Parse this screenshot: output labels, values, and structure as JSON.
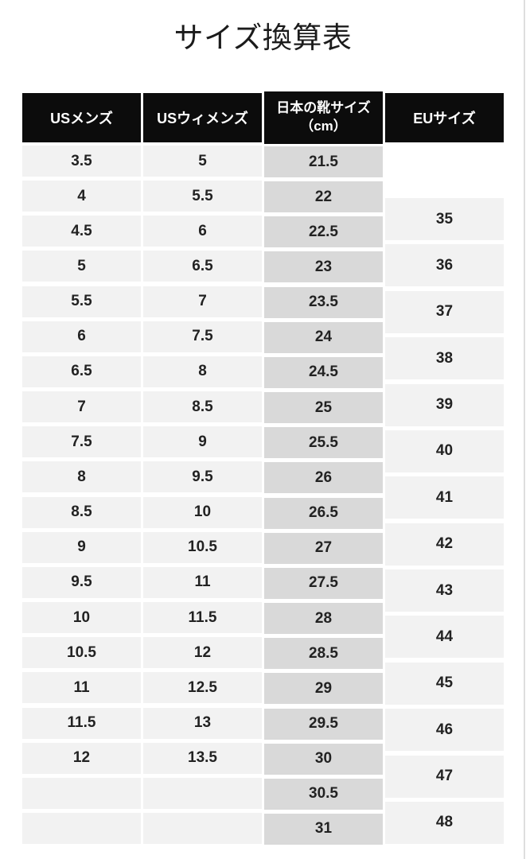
{
  "page": {
    "title": "サイズ換算表"
  },
  "table": {
    "headers": {
      "us_mens": {
        "label": "USメンズ"
      },
      "us_womens": {
        "label": "USウィメンズ"
      },
      "jp_cm": {
        "label_line1": "日本の靴サイズ",
        "label_line2": "（cm）"
      },
      "eu": {
        "label": "EUサイズ"
      }
    },
    "us_mens": [
      "3.5",
      "4",
      "4.5",
      "5",
      "5.5",
      "6",
      "6.5",
      "7",
      "7.5",
      "8",
      "8.5",
      "9",
      "9.5",
      "10",
      "10.5",
      "11",
      "11.5",
      "12",
      "",
      ""
    ],
    "us_womens": [
      "5",
      "5.5",
      "6",
      "6.5",
      "7",
      "7.5",
      "8",
      "8.5",
      "9",
      "9.5",
      "10",
      "10.5",
      "11",
      "11.5",
      "12",
      "12.5",
      "13",
      "13.5",
      "",
      ""
    ],
    "jp_cm": [
      "21.5",
      "22",
      "22.5",
      "23",
      "23.5",
      "24",
      "24.5",
      "25",
      "25.5",
      "26",
      "26.5",
      "27",
      "27.5",
      "28",
      "28.5",
      "29",
      "29.5",
      "30",
      "30.5",
      "31"
    ],
    "eu": [
      "35",
      "36",
      "37",
      "38",
      "39",
      "40",
      "41",
      "42",
      "43",
      "44",
      "45",
      "46",
      "47",
      "48"
    ]
  },
  "colors": {
    "header_background": "#0c0c0c",
    "header_text": "#ffffff",
    "cell_background": "#f2f2f2",
    "jp_cell_background": "#d9d9d9",
    "cell_text": "#222222",
    "page_background": "#ffffff"
  }
}
